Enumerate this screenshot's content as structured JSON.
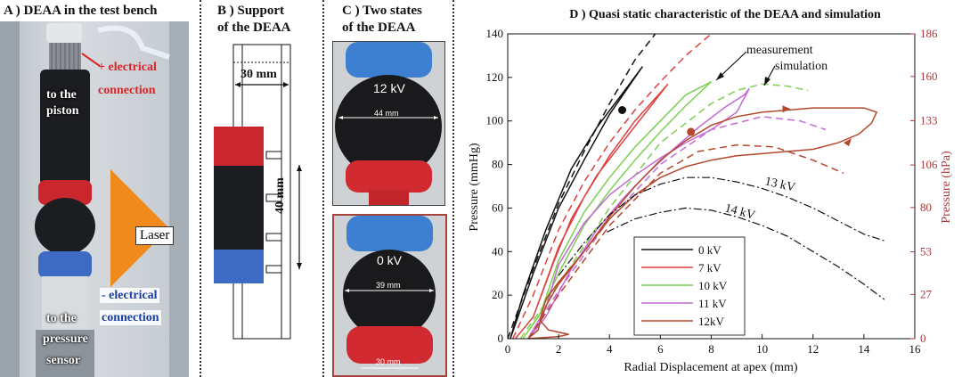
{
  "panelA": {
    "title": "A ) DEAA in the test bench",
    "plus_electrical": "+ electrical",
    "connection_top": "connection",
    "to_the_piston_1": "to the",
    "to_the_piston_2": "piston",
    "laser": "Laser",
    "minus_electrical": "- electrical",
    "connection_bottom": "connection",
    "to_the_pressure_1": "to the",
    "to_the_pressure_2": "pressure",
    "sensor": "sensor"
  },
  "panelB": {
    "title_1": "B ) Support",
    "title_2": "of the DEAA",
    "width_label": "30 mm",
    "height_label": "40 mm"
  },
  "panelC": {
    "title_1": "C ) Two states",
    "title_2": "of the DEAA",
    "top_voltage": "12 kV",
    "top_diameter": "44 mm",
    "bottom_voltage": "0 kV",
    "bottom_diameter": "39 mm",
    "bottom_base": "30 mm"
  },
  "chart_data": {
    "type": "line",
    "title": "D ) Quasi static characteristic of the DEAA and simulation",
    "xlabel": "Radial Displacement at apex (mm)",
    "ylabel": "Pressure (mmHg)",
    "ylabel_right": "Pressure (hPa)",
    "xlim": [
      0,
      16
    ],
    "ylim": [
      0,
      140
    ],
    "ylim_right": [
      0,
      186
    ],
    "xticks": [
      "0",
      "2",
      "4",
      "6",
      "8",
      "10",
      "12",
      "14",
      "16"
    ],
    "yticks": [
      "0",
      "20",
      "40",
      "60",
      "80",
      "100",
      "120",
      "140"
    ],
    "yticks_right": [
      "0",
      "27",
      "53",
      "80",
      "106",
      "133",
      "160",
      "186"
    ],
    "yticks_right_values": [
      0,
      27,
      53,
      80,
      106,
      133,
      160,
      186
    ],
    "legend": {
      "placement": "bottom-center",
      "entries": [
        "0 kV",
        "7 kV",
        "10 kV",
        "11 kV",
        "12kV"
      ]
    },
    "annotations": {
      "measurement": "measurement",
      "simulation": "simulation",
      "kv13": "13 kV",
      "kv14": "14 kV"
    },
    "colors": {
      "0 kV": "#111111",
      "7 kV": "#e04040",
      "10 kV": "#7ccf52",
      "11 kV": "#c36ad6",
      "12kV": "#b5482c",
      "right_axis": "#a8383c",
      "static": "#111111"
    },
    "series": [
      {
        "name": "0 kV",
        "kind": "measurement",
        "x": [
          0.1,
          1.0,
          2.0,
          3.0,
          4.0,
          5.0,
          5.3,
          4.6,
          3.5,
          2.5,
          1.5,
          0.6,
          0.1
        ],
        "y": [
          0,
          30,
          60,
          82,
          103,
          120,
          125,
          114,
          97,
          78,
          50,
          20,
          0
        ]
      },
      {
        "name": "0 kV",
        "kind": "simulation",
        "x": [
          0.0,
          1.0,
          2.0,
          3.0,
          4.0,
          5.0,
          5.8
        ],
        "y": [
          0,
          32,
          62,
          86,
          108,
          128,
          140
        ]
      },
      {
        "name": "7 kV",
        "kind": "measurement",
        "x": [
          0.3,
          1.0,
          2.0,
          3.0,
          4.0,
          5.0,
          6.0,
          6.3,
          5.5,
          4.5,
          3.5,
          2.5,
          1.8,
          1.0,
          0.3
        ],
        "y": [
          0,
          10,
          42,
          65,
          84,
          100,
          113,
          117,
          105,
          90,
          75,
          55,
          35,
          10,
          0
        ]
      },
      {
        "name": "7 kV",
        "kind": "simulation",
        "x": [
          0.2,
          1.0,
          2.0,
          3.0,
          4.0,
          5.0,
          6.0,
          7.0,
          8.0
        ],
        "y": [
          0,
          20,
          50,
          72,
          90,
          105,
          118,
          130,
          140
        ]
      },
      {
        "name": "10 kV",
        "kind": "measurement",
        "x": [
          0.6,
          1.2,
          2.0,
          3.0,
          4.0,
          5.0,
          6.0,
          7.0,
          8.0,
          7.0,
          6.0,
          5.0,
          4.0,
          3.0,
          2.0,
          1.3,
          0.6
        ],
        "y": [
          0,
          10,
          30,
          52,
          68,
          82,
          95,
          107,
          118,
          112,
          100,
          88,
          74,
          58,
          36,
          12,
          0
        ]
      },
      {
        "name": "10 kV",
        "kind": "simulation",
        "x": [
          0.5,
          2.0,
          4.0,
          6.0,
          8.0,
          9.0,
          10.0,
          11.0,
          11.8
        ],
        "y": [
          0,
          25,
          60,
          90,
          108,
          114,
          117,
          116,
          114
        ]
      },
      {
        "name": "11 kV",
        "kind": "measurement",
        "x": [
          0.8,
          1.5,
          2.5,
          3.5,
          4.5,
          5.5,
          6.5,
          7.5,
          8.5,
          9.3,
          9.5,
          9.0,
          8.0,
          7.0,
          6.0,
          5.0,
          4.0,
          3.0,
          2.0,
          1.5,
          0.8
        ],
        "y": [
          0,
          10,
          32,
          50,
          64,
          76,
          87,
          97,
          106,
          112,
          115,
          104,
          96,
          90,
          83,
          75,
          66,
          53,
          34,
          14,
          0
        ]
      },
      {
        "name": "11 kV",
        "kind": "simulation",
        "x": [
          0.8,
          2.0,
          4.0,
          6.0,
          8.0,
          10.0,
          11.5,
          12.5
        ],
        "y": [
          0,
          22,
          55,
          80,
          96,
          102,
          100,
          96
        ]
      },
      {
        "name": "12kV",
        "kind": "measurement",
        "x": [
          0.8,
          1.2,
          1.3,
          1.5,
          2.0,
          3.0,
          4.0,
          5.0,
          6.0,
          7.0,
          8.0,
          9.0,
          10.0,
          11.0,
          12.0,
          13.0,
          14.0,
          14.5,
          14.3,
          13.8,
          13.0,
          12.0,
          11.0,
          10.0,
          9.0,
          8.0,
          7.0,
          6.0,
          5.0,
          4.0,
          3.0,
          2.0,
          1.5,
          1.3,
          1.6,
          2.4,
          2.0,
          0.8
        ],
        "y": [
          0,
          4,
          10,
          18,
          26,
          40,
          56,
          70,
          82,
          91,
          98,
          102,
          104,
          105,
          106,
          106,
          106,
          104,
          99,
          94,
          90,
          87,
          86,
          85,
          84,
          82,
          79,
          74,
          66,
          55,
          40,
          25,
          15,
          8,
          4,
          2,
          1,
          0
        ]
      },
      {
        "name": "12kV",
        "kind": "simulation",
        "x": [
          0.8,
          2.0,
          4.0,
          6.0,
          7.5,
          9.0,
          10.5,
          12.0,
          13.2
        ],
        "y": [
          0,
          20,
          52,
          76,
          86,
          89,
          88,
          82,
          76
        ]
      },
      {
        "name": "13 kV",
        "kind": "static",
        "x": [
          2.0,
          3.0,
          4.0,
          5.0,
          6.0,
          7.0,
          8.0,
          9.0,
          10.0,
          11.0,
          12.0,
          13.0,
          14.0,
          14.8
        ],
        "y": [
          29,
          44,
          57,
          66,
          71,
          74,
          74,
          72,
          69,
          65,
          60,
          54,
          48,
          45
        ]
      },
      {
        "name": "14 kV",
        "kind": "static",
        "x": [
          3.9,
          5.0,
          6.0,
          7.0,
          8.0,
          9.0,
          10.0,
          11.0,
          12.0,
          13.0,
          14.0,
          14.8
        ],
        "y": [
          49,
          55,
          58,
          60,
          59,
          56,
          52,
          47,
          40,
          33,
          25,
          18
        ]
      }
    ],
    "points": [
      {
        "x": 4.5,
        "y": 105,
        "color": "#111111"
      },
      {
        "x": 7.2,
        "y": 95,
        "color": "#b5482c"
      }
    ]
  }
}
